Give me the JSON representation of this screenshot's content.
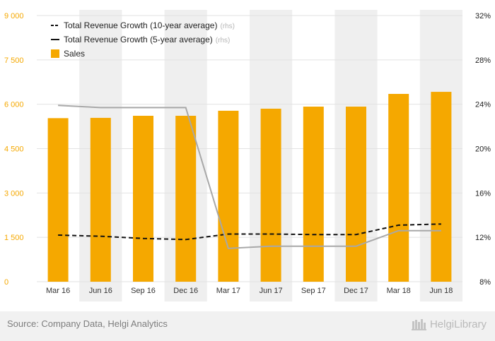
{
  "chart_data": {
    "type": "bar",
    "categories": [
      "Mar 16",
      "Jun 16",
      "Sep 16",
      "Dec 16",
      "Mar 17",
      "Jun 17",
      "Sep 17",
      "Dec 17",
      "Mar 18",
      "Jun 18"
    ],
    "series": [
      {
        "name": "Sales",
        "kind": "bar",
        "axis": "left",
        "color": "#f5a800",
        "values": [
          5530,
          5540,
          5610,
          5610,
          5780,
          5850,
          5920,
          5920,
          6350,
          6420
        ]
      },
      {
        "name": "Total Revenue Growth (10-year average)",
        "kind": "line",
        "axis": "right",
        "style": "dashed",
        "color": "#111111",
        "values": [
          12.2,
          12.1,
          11.9,
          11.8,
          12.3,
          12.3,
          12.25,
          12.25,
          13.1,
          13.2
        ]
      },
      {
        "name": "Total Revenue Growth (5-year average)",
        "kind": "line",
        "axis": "right",
        "style": "solid",
        "color": "#a8a8a8",
        "values": [
          23.9,
          23.7,
          23.7,
          23.7,
          11.0,
          11.2,
          11.2,
          11.2,
          12.6,
          12.6
        ]
      }
    ],
    "y_left": {
      "range": [
        0,
        9000
      ],
      "ticks": [
        0,
        1500,
        3000,
        4500,
        6000,
        7500,
        9000
      ],
      "tick_labels": [
        "0",
        "1 500",
        "3 000",
        "4 500",
        "6 000",
        "7 500",
        "9 000"
      ]
    },
    "y_right": {
      "range": [
        8,
        32
      ],
      "ticks": [
        8,
        12,
        16,
        20,
        24,
        28,
        32
      ],
      "tick_labels": [
        "8%",
        "12%",
        "16%",
        "20%",
        "24%",
        "28%",
        "32%"
      ]
    },
    "legend": [
      {
        "label": "Total Revenue Growth (10-year average)",
        "suffix": "(rhs)",
        "marker": "dashed"
      },
      {
        "label": "Total Revenue Growth (5-year average)",
        "suffix": "(rhs)",
        "marker": "solid"
      },
      {
        "label": "Sales",
        "suffix": "",
        "marker": "square"
      }
    ],
    "legend_position": "top-left",
    "colors": {
      "bar": "#f5a800",
      "left_axis_text": "#f5a800",
      "right_axis_text": "#222222",
      "grid": "#e2e2e2",
      "band": "#efefef"
    }
  },
  "footer": {
    "source": "Source: Company Data, Helgi Analytics",
    "brand": "HelgiLibrary"
  }
}
